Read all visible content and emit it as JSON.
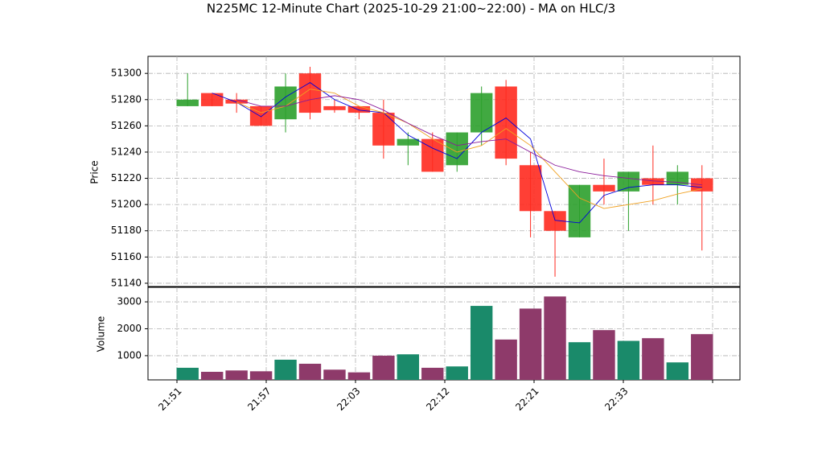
{
  "chart_data": {
    "type": "candlestick",
    "title": "N225MC 12-Minute Chart (2025-10-29 21:00~22:00) - MA on HLC/3",
    "ylabel": "Price",
    "xticklabels": [
      "21:51",
      "21:57",
      "22:03",
      "22:12",
      "22:21",
      "22:33"
    ],
    "open": [
      51275,
      51285,
      51280,
      51275,
      51265,
      51300,
      51275,
      51275,
      51270,
      51245,
      51250,
      51230,
      51255,
      51290,
      51230,
      51195,
      51175,
      51215,
      51210,
      51220,
      51215,
      51220
    ],
    "high": [
      51300,
      51285,
      51285,
      51275,
      51300,
      51305,
      51280,
      51275,
      51280,
      51255,
      51255,
      51255,
      51290,
      51295,
      51240,
      51195,
      51215,
      51235,
      51225,
      51245,
      51230,
      51230
    ],
    "low": [
      51275,
      51275,
      51270,
      51260,
      51255,
      51265,
      51270,
      51265,
      51235,
      51230,
      51225,
      51225,
      51245,
      51230,
      51175,
      51145,
      51175,
      51200,
      51180,
      51200,
      51200,
      51165
    ],
    "close": [
      51280,
      51275,
      51277,
      51260,
      51290,
      51270,
      51272,
      51270,
      51245,
      51250,
      51225,
      51255,
      51285,
      51235,
      51195,
      51180,
      51215,
      51210,
      51225,
      51215,
      51225,
      51210
    ],
    "up_color": "#2ca02c",
    "down_color": "#ff2a1f",
    "ylim": [
      51137.5,
      51313
    ],
    "yticks": [
      51140,
      51160,
      51180,
      51200,
      51220,
      51240,
      51260,
      51280,
      51300
    ],
    "grid": true,
    "ma": [
      {
        "color": "#0000dd",
        "values": [
          null,
          51285,
          51278,
          51267,
          51282,
          51293,
          51280,
          51272,
          51270,
          51253,
          51243,
          51235,
          51255,
          51266,
          51250,
          51188,
          51186,
          51207,
          51213,
          51215,
          51215,
          51213
        ]
      },
      {
        "color": "#f0a020",
        "values": [
          null,
          null,
          51278,
          51270,
          51275,
          51288,
          51285,
          51275,
          51270,
          51262,
          51250,
          51240,
          51245,
          51258,
          51245,
          51225,
          51205,
          51197,
          51200,
          51203,
          51208,
          51212
        ]
      },
      {
        "color": "#8a1a9a",
        "values": [
          null,
          null,
          51280,
          51275,
          51275,
          51280,
          51283,
          51280,
          51272,
          51262,
          51253,
          51245,
          51248,
          51250,
          51240,
          51230,
          51225,
          51222,
          51220,
          51218,
          51217,
          51215
        ]
      }
    ],
    "volume": {
      "label": "Volume",
      "up_color": "#1a8a6a",
      "down_color": "#8e3a6a",
      "values": [
        550,
        400,
        450,
        420,
        850,
        700,
        480,
        380,
        1000,
        1050,
        550,
        600,
        2850,
        1600,
        2750,
        3200,
        1500,
        1950,
        1550,
        1650,
        750,
        1800
      ],
      "ylim": [
        100,
        3540
      ],
      "yticks": [
        1000,
        2000,
        3000
      ]
    }
  }
}
